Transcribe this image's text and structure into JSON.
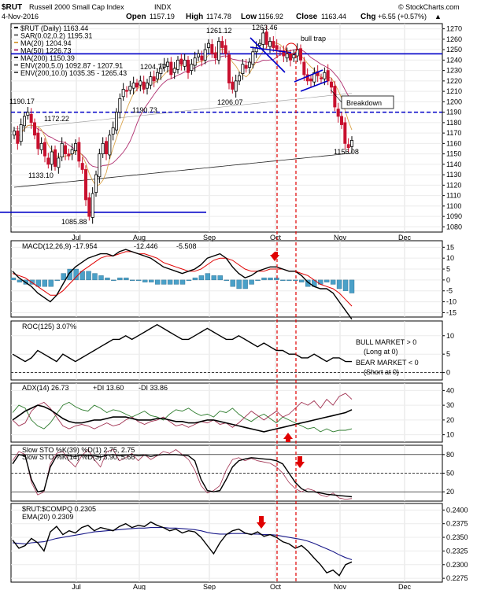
{
  "header": {
    "symbol": "$RUT",
    "name": "Russell 2000 Small Cap Index",
    "exchange": "INDX",
    "date": "4-Nov-2016",
    "open_label": "Open",
    "open": "1157.19",
    "high_label": "High",
    "high": "1174.78",
    "low_label": "Low",
    "low": "1156.92",
    "close_label": "Close",
    "close": "1163.44",
    "chg_label": "Chg",
    "chg": "+6.55 (+0.57%)",
    "credit": "© StockCharts.com",
    "up_arrow": "▲"
  },
  "colors": {
    "up": "#000000",
    "down": "#c8102e",
    "hline": "#0000c8",
    "marker": "#e00000",
    "ma20": "#d9a34a",
    "ma50": "#b03070",
    "ma200": "#222222",
    "env": "#999999",
    "macd": "#000000",
    "signal": "#e00000",
    "hist": "#4aa0c8",
    "pdi": "#2a7a2a",
    "ndi": "#a03050",
    "ema": "#1a1a8a"
  },
  "months": [
    "Jul",
    "Aug",
    "Sep",
    "Oct",
    "Nov",
    "Dec"
  ],
  "main": {
    "legend": [
      {
        "text": "$RUT (Daily) 1163.44",
        "color": "#000000"
      },
      {
        "text": "SAR(0.02,0.2) 1195.31",
        "color": "#666666"
      },
      {
        "text": "MA(20) 1204.94",
        "color": "#d9a34a"
      },
      {
        "text": "MA(50) 1226.73",
        "color": "#b03070"
      },
      {
        "text": "MA(200) 1150.39",
        "color": "#222222"
      },
      {
        "text": "ENV(200,5.0) 1092.87 - 1207.91",
        "color": "#555555"
      },
      {
        "text": "ENV(200,10.0) 1035.35 - 1265.43",
        "color": "#555555"
      }
    ],
    "annotations": {
      "bull_trap": "bull trap",
      "breakdown": "Breakdown"
    },
    "price_labels": [
      "1190.17",
      "1172.22",
      "1133.10",
      "1085.88",
      "1204.77",
      "1190.73",
      "1261.12",
      "1206.07",
      "1263.46",
      "1156.08"
    ]
  },
  "chart_data": [
    {
      "type": "candlestick",
      "ylim": [
        1075,
        1275
      ],
      "yticks": [
        1080,
        1090,
        1100,
        1110,
        1120,
        1130,
        1140,
        1150,
        1160,
        1170,
        1180,
        1190,
        1200,
        1210,
        1220,
        1230,
        1240,
        1250,
        1260,
        1270
      ],
      "close": [
        1172,
        1160,
        1178,
        1186,
        1190,
        1180,
        1168,
        1155,
        1160,
        1148,
        1140,
        1152,
        1138,
        1146,
        1160,
        1150,
        1148,
        1154,
        1160,
        1143,
        1135,
        1106,
        1090,
        1112,
        1130,
        1150,
        1160,
        1150,
        1168,
        1175,
        1190,
        1203,
        1212,
        1210,
        1215,
        1218,
        1214,
        1220,
        1212,
        1218,
        1224,
        1220,
        1228,
        1232,
        1236,
        1238,
        1226,
        1232,
        1240,
        1236,
        1240,
        1228,
        1236,
        1242,
        1246,
        1240,
        1250,
        1256,
        1246,
        1242,
        1258,
        1252,
        1246,
        1218,
        1212,
        1220,
        1225,
        1236,
        1232,
        1238,
        1248,
        1252,
        1256,
        1266,
        1255,
        1258,
        1252,
        1250,
        1248,
        1244,
        1246,
        1240,
        1245,
        1250,
        1240,
        1226,
        1220,
        1220,
        1228,
        1225,
        1222,
        1228,
        1220,
        1214,
        1195,
        1186,
        1178,
        1160,
        1156,
        1163
      ],
      "horizontal_lines": [
        1246,
        1190,
        1094
      ],
      "sar": 1195.31,
      "ma20": 1204.94,
      "ma50": 1226.73,
      "ma200": 1150.39,
      "env5": [
        1092.87,
        1207.91
      ],
      "env10": [
        1035.35,
        1265.43
      ]
    },
    {
      "type": "line",
      "name": "MACD(12,26,9)",
      "legend_macd": "MACD(12,26,9) -17.954",
      "legend_signal": "-12.446",
      "legend_hist": "-5.508",
      "ylim": [
        -17,
        18
      ],
      "yticks": [
        15,
        10,
        5,
        0,
        -5,
        -10,
        -15
      ],
      "macd": [
        4,
        1,
        -1,
        -3,
        -6,
        -8,
        -10,
        -7,
        -2,
        3,
        6,
        8,
        10,
        11,
        12,
        12,
        11,
        13,
        14,
        13,
        12,
        11,
        10,
        8,
        6,
        5,
        4,
        3,
        4,
        5,
        7,
        10,
        11,
        12,
        10,
        6,
        3,
        1,
        2,
        4,
        5,
        6,
        6,
        5,
        4,
        4,
        2,
        -1,
        -3,
        -4,
        -4,
        -6,
        -10,
        -14,
        -18
      ],
      "signal": [
        3,
        2,
        1,
        -1,
        -3,
        -5,
        -7,
        -7,
        -5,
        -2,
        1,
        4,
        6,
        8,
        10,
        11,
        11,
        12,
        13,
        13,
        12,
        12,
        11,
        10,
        8,
        7,
        6,
        5,
        4,
        4,
        5,
        7,
        9,
        10,
        10,
        9,
        7,
        5,
        4,
        4,
        4,
        5,
        5,
        5,
        4,
        4,
        3,
        2,
        0,
        -2,
        -3,
        -4,
        -6,
        -9,
        -12
      ]
    },
    {
      "type": "line",
      "name": "ROC(125)",
      "legend": "ROC(125) 3.07%",
      "ylim": [
        -2,
        14
      ],
      "yticks": [
        10,
        5,
        0
      ],
      "values": [
        5,
        4,
        3,
        4,
        6,
        5,
        4,
        3,
        5,
        4,
        3,
        4,
        5,
        6,
        7,
        8,
        9,
        9,
        10,
        9,
        10,
        11,
        12,
        13,
        12,
        11,
        10,
        9,
        9,
        10,
        11,
        12,
        11,
        10,
        9,
        9,
        10,
        9,
        8,
        7,
        8,
        7,
        6,
        6,
        5,
        5,
        4,
        4,
        5,
        4,
        3,
        4,
        4,
        3,
        3
      ],
      "annotations": [
        "BULL MARKET > 0",
        "(Long at 0)",
        "BEAR MARKET < 0",
        "(Short at 0)"
      ]
    },
    {
      "type": "line",
      "name": "ADX(14)",
      "legend_adx": "ADX(14) 26.73",
      "legend_pdi": "+DI 13.60",
      "legend_ndi": "-DI 33.86",
      "ylim": [
        5,
        45
      ],
      "yticks": [
        40,
        30,
        20,
        10
      ],
      "adx": [
        20,
        23,
        26,
        28,
        30,
        29,
        27,
        24,
        21,
        19,
        18,
        18,
        19,
        20,
        20,
        21,
        22,
        22,
        22,
        21,
        20,
        20,
        20,
        21,
        21,
        20,
        19,
        19,
        18,
        18,
        19,
        20,
        20,
        19,
        18,
        17,
        16,
        15,
        14,
        13,
        12,
        13,
        14,
        15,
        16,
        17,
        18,
        19,
        20,
        21,
        22,
        23,
        24,
        25,
        27
      ],
      "pdi": [
        25,
        30,
        28,
        20,
        16,
        14,
        18,
        24,
        30,
        32,
        29,
        27,
        26,
        30,
        28,
        25,
        27,
        26,
        24,
        22,
        24,
        26,
        23,
        22,
        20,
        24,
        27,
        26,
        28,
        25,
        23,
        24,
        22,
        26,
        25,
        28,
        24,
        21,
        19,
        22,
        24,
        21,
        18,
        22,
        20,
        18,
        16,
        14,
        15,
        12,
        14,
        12,
        13,
        13,
        14
      ],
      "ndi": [
        20,
        16,
        18,
        26,
        30,
        32,
        28,
        22,
        16,
        14,
        16,
        17,
        16,
        14,
        16,
        18,
        16,
        17,
        20,
        22,
        19,
        17,
        19,
        20,
        22,
        19,
        16,
        17,
        15,
        17,
        19,
        18,
        20,
        17,
        18,
        15,
        18,
        22,
        26,
        23,
        20,
        23,
        26,
        22,
        24,
        28,
        32,
        30,
        33,
        28,
        34,
        30,
        36,
        38,
        34
      ]
    },
    {
      "type": "line",
      "name": "Slow STO",
      "legend_1": "Slow STO %K(39) %D(1) 2.75, 2.75",
      "legend_2": "Slow STO %K(14) %D(3) 3.90, 5.66",
      "ylim": [
        5,
        95
      ],
      "yticks": [
        80,
        50,
        20
      ],
      "k39": [
        65,
        80,
        78,
        40,
        20,
        22,
        60,
        78,
        80,
        78,
        77,
        79,
        78,
        78,
        76,
        79,
        80,
        78,
        79,
        80,
        78,
        79,
        77,
        79,
        80,
        80,
        80,
        79,
        78,
        70,
        40,
        22,
        20,
        22,
        40,
        60,
        70,
        73,
        75,
        74,
        73,
        72,
        70,
        65,
        50,
        35,
        25,
        20,
        20,
        18,
        16,
        15,
        14,
        13,
        12
      ],
      "k14": [
        70,
        85,
        80,
        35,
        15,
        20,
        65,
        82,
        85,
        70,
        60,
        78,
        88,
        72,
        60,
        85,
        88,
        70,
        75,
        82,
        70,
        80,
        72,
        78,
        85,
        82,
        88,
        80,
        72,
        55,
        30,
        18,
        22,
        30,
        55,
        72,
        75,
        70,
        74,
        70,
        68,
        66,
        60,
        50,
        35,
        25,
        20,
        25,
        22,
        15,
        12,
        18,
        10,
        8,
        9
      ]
    },
    {
      "type": "line",
      "name": "$RUT:$COMPQ",
      "legend_ratio": "$RUT:$COMPQ 0.2305",
      "legend_ema": "EMA(20) 0.2309",
      "ylim": [
        0.2268,
        0.2412
      ],
      "yticks": [
        0.24,
        0.2375,
        0.235,
        0.2325,
        0.23,
        0.2275
      ],
      "ytick_labels": [
        "0.2400",
        "0.2375",
        "0.2350",
        "0.2325",
        "0.2300",
        "0.2275"
      ],
      "values": [
        0.2345,
        0.233,
        0.2335,
        0.2348,
        0.234,
        0.2325,
        0.236,
        0.237,
        0.2355,
        0.2362,
        0.2358,
        0.2368,
        0.2372,
        0.2362,
        0.2368,
        0.2365,
        0.2362,
        0.237,
        0.2375,
        0.2368,
        0.2372,
        0.237,
        0.2378,
        0.2372,
        0.2368,
        0.2362,
        0.2365,
        0.2358,
        0.2362,
        0.236,
        0.235,
        0.2335,
        0.232,
        0.234,
        0.2355,
        0.2362,
        0.2365,
        0.2358,
        0.2355,
        0.236,
        0.2352,
        0.2355,
        0.235,
        0.2342,
        0.2338,
        0.233,
        0.2335,
        0.2325,
        0.2312,
        0.23,
        0.2285,
        0.229,
        0.228,
        0.23,
        0.2305
      ],
      "ema": [
        0.234,
        0.2339,
        0.2338,
        0.234,
        0.2341,
        0.2342,
        0.2345,
        0.2348,
        0.235,
        0.2352,
        0.2354,
        0.2356,
        0.2358,
        0.236,
        0.2361,
        0.2362,
        0.2363,
        0.2364,
        0.2365,
        0.2366,
        0.2367,
        0.2367,
        0.2368,
        0.2368,
        0.2368,
        0.2367,
        0.2367,
        0.2366,
        0.2365,
        0.2364,
        0.2362,
        0.2359,
        0.2357,
        0.2356,
        0.2356,
        0.2357,
        0.2357,
        0.2357,
        0.2356,
        0.2356,
        0.2355,
        0.2355,
        0.2354,
        0.2352,
        0.235,
        0.2348,
        0.2346,
        0.2343,
        0.2339,
        0.2334,
        0.2329,
        0.2324,
        0.2318,
        0.2313,
        0.2309
      ]
    }
  ]
}
